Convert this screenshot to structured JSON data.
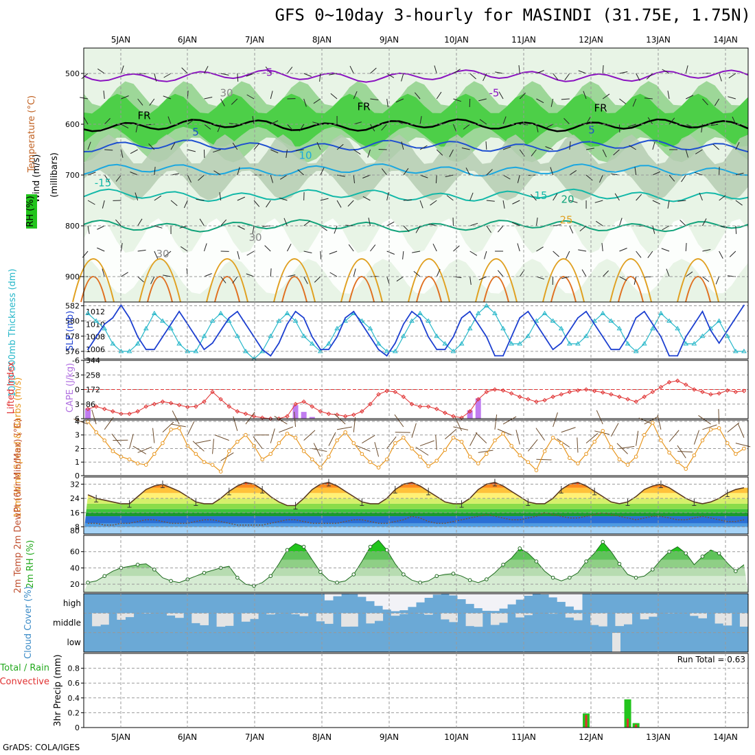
{
  "title": "GFS 0~10day 3-hourly for MASINDI (31.75E, 1.75N)",
  "credit": "GrADS: COLA/IGES",
  "chart_data": {
    "type": "meteogram",
    "date_labels": [
      "5JAN",
      "6JAN",
      "7JAN",
      "8JAN",
      "9JAN",
      "10JAN",
      "11JAN",
      "12JAN",
      "13JAN",
      "14JAN"
    ],
    "steps": 80,
    "panels": {
      "upper_air": {
        "ylabel": "(millibars)",
        "legend": [
          "Wind (m/s)",
          "Temperature (°C)",
          "RH (%)"
        ],
        "yticks": [
          500,
          600,
          700,
          800,
          900
        ],
        "ylim": [
          450,
          950
        ],
        "contour_labels": [
          "-5",
          "-5",
          "FR",
          "FR",
          "FR",
          "5",
          "5",
          "10",
          "-15",
          "15",
          "20",
          "25",
          "30",
          "30",
          "30"
        ],
        "isotherms": [
          {
            "label": "-5",
            "p": 505,
            "color": "#8a12c0"
          },
          {
            "label": "FR",
            "p": 602,
            "color": "#000000"
          },
          {
            "label": "5",
            "p": 643,
            "color": "#1e4fd0"
          },
          {
            "label": "10",
            "p": 690,
            "color": "#1aa7e0"
          },
          {
            "label": "15",
            "p": 740,
            "color": "#12b8a8"
          },
          {
            "label": "20",
            "p": 800,
            "color": "#10a27a"
          }
        ]
      },
      "thickness_slp": {
        "ylabel_left": "1000-500mb Thickness (dm)",
        "ylabel_right": "SLP (mb)",
        "thickness_ticks": [
          576,
          578,
          580,
          582
        ],
        "slp_ticks": [
          1006,
          1008,
          1010,
          1012
        ],
        "thickness_range": [
          575,
          582.5
        ],
        "slp_range": [
          1004.5,
          1013.5
        ],
        "thickness": [
          581,
          580,
          579,
          577,
          576,
          576,
          577,
          579,
          581,
          580,
          579,
          577,
          576,
          576,
          578,
          580,
          581,
          580,
          578,
          576,
          575,
          576,
          578,
          580,
          581,
          580,
          578,
          577,
          576,
          577,
          579,
          580,
          581,
          580,
          579,
          577,
          576,
          576,
          578,
          580,
          581,
          580,
          578,
          577,
          576,
          577,
          579,
          581,
          582,
          581,
          579,
          577,
          577,
          578,
          580,
          581,
          580,
          579,
          577,
          577,
          578,
          580,
          581,
          580,
          579,
          577,
          576,
          577,
          579,
          581,
          580,
          579,
          577,
          577,
          578,
          579,
          580,
          578,
          576,
          576
        ],
        "slp": [
          1006,
          1008,
          1010,
          1011,
          1013,
          1011,
          1008,
          1006,
          1006,
          1008,
          1010,
          1012,
          1010,
          1008,
          1006,
          1007,
          1009,
          1011,
          1012,
          1010,
          1008,
          1006,
          1005,
          1007,
          1010,
          1012,
          1011,
          1008,
          1006,
          1006,
          1008,
          1011,
          1012,
          1010,
          1008,
          1006,
          1005,
          1007,
          1010,
          1012,
          1011,
          1008,
          1006,
          1006,
          1008,
          1011,
          1012,
          1010,
          1008,
          1005,
          1005,
          1008,
          1011,
          1012,
          1010,
          1008,
          1006,
          1007,
          1009,
          1011,
          1012,
          1010,
          1008,
          1006,
          1006,
          1008,
          1011,
          1012,
          1010,
          1008,
          1005,
          1005,
          1008,
          1010,
          1012,
          1009,
          1007,
          1009,
          1011,
          1013
        ]
      },
      "cape_li": {
        "ylabel_left": "Lifted Index",
        "ylabel_right": "CAPE (J/kg)",
        "li_ticks": [
          -6,
          -3,
          0,
          3,
          6
        ],
        "cape_ticks": [
          86,
          172,
          258,
          344
        ],
        "cape_range": [
          0,
          344
        ],
        "li_range": [
          -6,
          6
        ],
        "cape": [
          60,
          0,
          0,
          0,
          0,
          0,
          0,
          0,
          0,
          0,
          0,
          0,
          0,
          0,
          0,
          0,
          0,
          0,
          0,
          0,
          0,
          0,
          0,
          0,
          0,
          80,
          40,
          10,
          0,
          0,
          0,
          0,
          0,
          0,
          0,
          0,
          0,
          0,
          0,
          0,
          0,
          0,
          0,
          0,
          0,
          0,
          50,
          120,
          0,
          0,
          0,
          0,
          0,
          0,
          0,
          0,
          0,
          0,
          0,
          0,
          0,
          0,
          0,
          0,
          0,
          0,
          0,
          0,
          0,
          0,
          0,
          0,
          0,
          0,
          0,
          0,
          0,
          0,
          0,
          0
        ],
        "li": [
          4,
          3.5,
          4,
          4.5,
          5,
          5,
          4.5,
          3.5,
          3,
          2.5,
          2.8,
          3.2,
          3.6,
          3.5,
          2.5,
          0.5,
          2,
          3.5,
          4.5,
          5,
          5.5,
          5.8,
          6,
          6,
          5.5,
          3,
          2.5,
          3.5,
          4.5,
          5,
          5.2,
          5.5,
          5.2,
          4.5,
          3,
          1,
          0.3,
          0.5,
          1.5,
          3,
          3.5,
          3.5,
          4,
          4.8,
          5.5,
          5.8,
          4.5,
          2,
          0.5,
          0,
          0.2,
          0.8,
          1.5,
          2,
          2.5,
          2.2,
          1.5,
          1,
          0.5,
          0.2,
          0,
          0.3,
          0.6,
          1,
          1.5,
          2,
          2.5,
          1.5,
          0.5,
          -0.5,
          -1.5,
          -1.8,
          -1,
          0,
          0.5,
          1,
          0.8,
          0.2,
          0.5,
          0.3
        ]
      },
      "wind10m": {
        "ylabel": "10m Wind Speed & Barbs (m/s)",
        "yticks": [
          0,
          1,
          2,
          3,
          4
        ],
        "ylim": [
          0,
          4.1
        ],
        "speed": [
          4,
          3.2,
          2.6,
          1.8,
          1.4,
          1.2,
          0.9,
          0.8,
          1.6,
          2.4,
          3.4,
          3.5,
          2.2,
          1.6,
          1.0,
          0.8,
          0.3,
          1.8,
          2.5,
          3.0,
          2.2,
          1.2,
          1.6,
          2.4,
          3.1,
          2.8,
          1.8,
          1.2,
          0.6,
          1.4,
          2.6,
          3.2,
          2.4,
          1.6,
          1.0,
          0.6,
          1.2,
          2.4,
          2.8,
          2.0,
          1.4,
          0.7,
          1.1,
          1.9,
          2.8,
          2.5,
          1.4,
          0.9,
          1.6,
          2.6,
          3.1,
          2.2,
          1.5,
          1.0,
          0.4,
          1.8,
          2.8,
          2.4,
          1.3,
          0.9,
          1.6,
          2.5,
          3.3,
          2.1,
          1.2,
          0.8,
          1.4,
          3.0,
          3.9,
          2.6,
          1.7,
          1.0,
          0.5,
          1.5,
          2.6,
          3.4,
          3.5,
          2.4,
          1.6,
          2.0
        ]
      },
      "temp2m": {
        "ylabel": "2m Temp 2m DewPt (6hr Min/Max) (°C)",
        "yticks": [
          8,
          16,
          24,
          32
        ],
        "ytick_extra": 80,
        "ylim": [
          4,
          36
        ],
        "temp": [
          26,
          24,
          23,
          22,
          21,
          21,
          25,
          29,
          31,
          32,
          30,
          28,
          25,
          22,
          21,
          21,
          24,
          28,
          31,
          33,
          32,
          29,
          25,
          22,
          20,
          20,
          24,
          29,
          32,
          33,
          31,
          28,
          25,
          22,
          21,
          21,
          24,
          29,
          32,
          33,
          31,
          28,
          25,
          22,
          21,
          21,
          24,
          29,
          32,
          33,
          31,
          28,
          25,
          22,
          21,
          21,
          24,
          29,
          32,
          33,
          31,
          28,
          25,
          22,
          21,
          22,
          25,
          29,
          31,
          32,
          30,
          27,
          24,
          22,
          21,
          22,
          24,
          27,
          29,
          30
        ],
        "dewpt": [
          10,
          10,
          9,
          9,
          10,
          10,
          11,
          12,
          12,
          11,
          10,
          10,
          10,
          11,
          12,
          12,
          11,
          10,
          9,
          9,
          9,
          9,
          10,
          11,
          12,
          12,
          11,
          10,
          10,
          10,
          10,
          11,
          12,
          12,
          11,
          10,
          10,
          11,
          12,
          14,
          13,
          11,
          10,
          10,
          11,
          12,
          13,
          14,
          15,
          14,
          13,
          12,
          12,
          13,
          14,
          16,
          15,
          14,
          13,
          13,
          14,
          15,
          16,
          15,
          14,
          13,
          12,
          13,
          14,
          14,
          13,
          12,
          12,
          13,
          14,
          13,
          12,
          11,
          11,
          12
        ]
      },
      "rh2m": {
        "ylabel": "2m RH (%)",
        "yticks": [
          20,
          40,
          60
        ],
        "ylim": [
          10,
          80
        ],
        "rh": [
          22,
          24,
          30,
          36,
          40,
          42,
          44,
          45,
          38,
          28,
          24,
          22,
          26,
          30,
          34,
          37,
          40,
          42,
          28,
          20,
          18,
          22,
          30,
          45,
          62,
          70,
          66,
          50,
          35,
          25,
          22,
          24,
          32,
          48,
          66,
          74,
          62,
          45,
          32,
          25,
          22,
          24,
          30,
          32,
          33,
          30,
          25,
          22,
          26,
          34,
          44,
          52,
          64,
          58,
          48,
          36,
          28,
          24,
          28,
          34,
          48,
          58,
          72,
          60,
          45,
          32,
          28,
          30,
          38,
          50,
          60,
          66,
          58,
          44,
          54,
          62,
          58,
          46,
          36,
          44
        ]
      },
      "cloud": {
        "ylabel": "Cloud Cover (%)",
        "levels": [
          "high",
          "middle",
          "low"
        ]
      },
      "precip": {
        "ylabel": "3hr Precip (mm)",
        "legend": [
          "Total / Rain",
          "Convective"
        ],
        "yticks": [
          0,
          0.2,
          0.4,
          0.6,
          0.8
        ],
        "ylim": [
          0,
          1.0
        ],
        "run_total_label": "Run Total = 0.63",
        "total": [
          0,
          0,
          0,
          0,
          0,
          0,
          0,
          0,
          0,
          0,
          0,
          0,
          0,
          0,
          0,
          0,
          0,
          0,
          0,
          0,
          0,
          0,
          0,
          0,
          0,
          0,
          0,
          0,
          0,
          0,
          0,
          0,
          0,
          0,
          0,
          0,
          0,
          0,
          0,
          0,
          0,
          0,
          0,
          0,
          0,
          0,
          0,
          0,
          0,
          0,
          0,
          0,
          0,
          0,
          0,
          0,
          0,
          0,
          0,
          0,
          0.19,
          0,
          0,
          0,
          0,
          0.38,
          0.06,
          0,
          0,
          0,
          0,
          0,
          0,
          0,
          0,
          0,
          0,
          0,
          0,
          0
        ],
        "convective": [
          0,
          0,
          0,
          0,
          0,
          0,
          0,
          0,
          0,
          0,
          0,
          0,
          0,
          0,
          0,
          0,
          0,
          0,
          0,
          0,
          0,
          0,
          0,
          0,
          0,
          0,
          0,
          0,
          0,
          0,
          0,
          0,
          0,
          0,
          0,
          0,
          0,
          0,
          0,
          0,
          0,
          0,
          0,
          0,
          0,
          0,
          0,
          0,
          0,
          0,
          0,
          0,
          0,
          0,
          0,
          0,
          0,
          0,
          0,
          0,
          0.17,
          0,
          0,
          0,
          0,
          0.12,
          0.04,
          0,
          0,
          0,
          0,
          0,
          0,
          0,
          0,
          0,
          0,
          0,
          0,
          0
        ]
      }
    }
  }
}
